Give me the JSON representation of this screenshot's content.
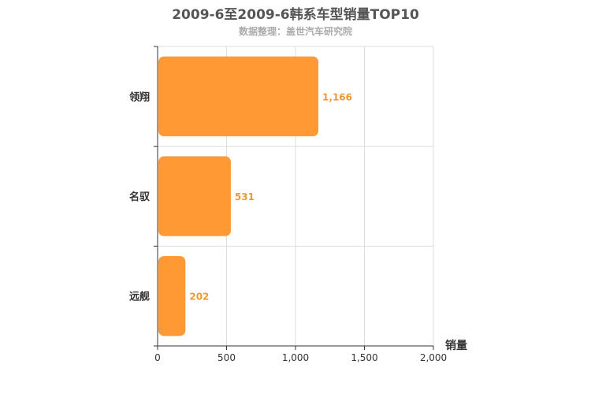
{
  "chart_data": {
    "type": "bar",
    "orientation": "horizontal",
    "title": "2009-6至2009-6韩系车型销量TOP10",
    "subtitle": "数据整理：盖世汽车研究院",
    "categories": [
      "领翔",
      "名驭",
      "远舰"
    ],
    "values": [
      1166,
      531,
      202
    ],
    "value_labels": [
      "1,166",
      "531",
      "202"
    ],
    "xlabel": "销量",
    "ylabel": "",
    "xlim": [
      0,
      2000
    ],
    "xticks": [
      0,
      500,
      1000,
      1500,
      2000
    ],
    "xtick_labels": [
      "0",
      "500",
      "1,000",
      "1,500",
      "2,000"
    ],
    "grid": true,
    "bar_color": "#ff9933",
    "label_color": "#ee9933"
  }
}
